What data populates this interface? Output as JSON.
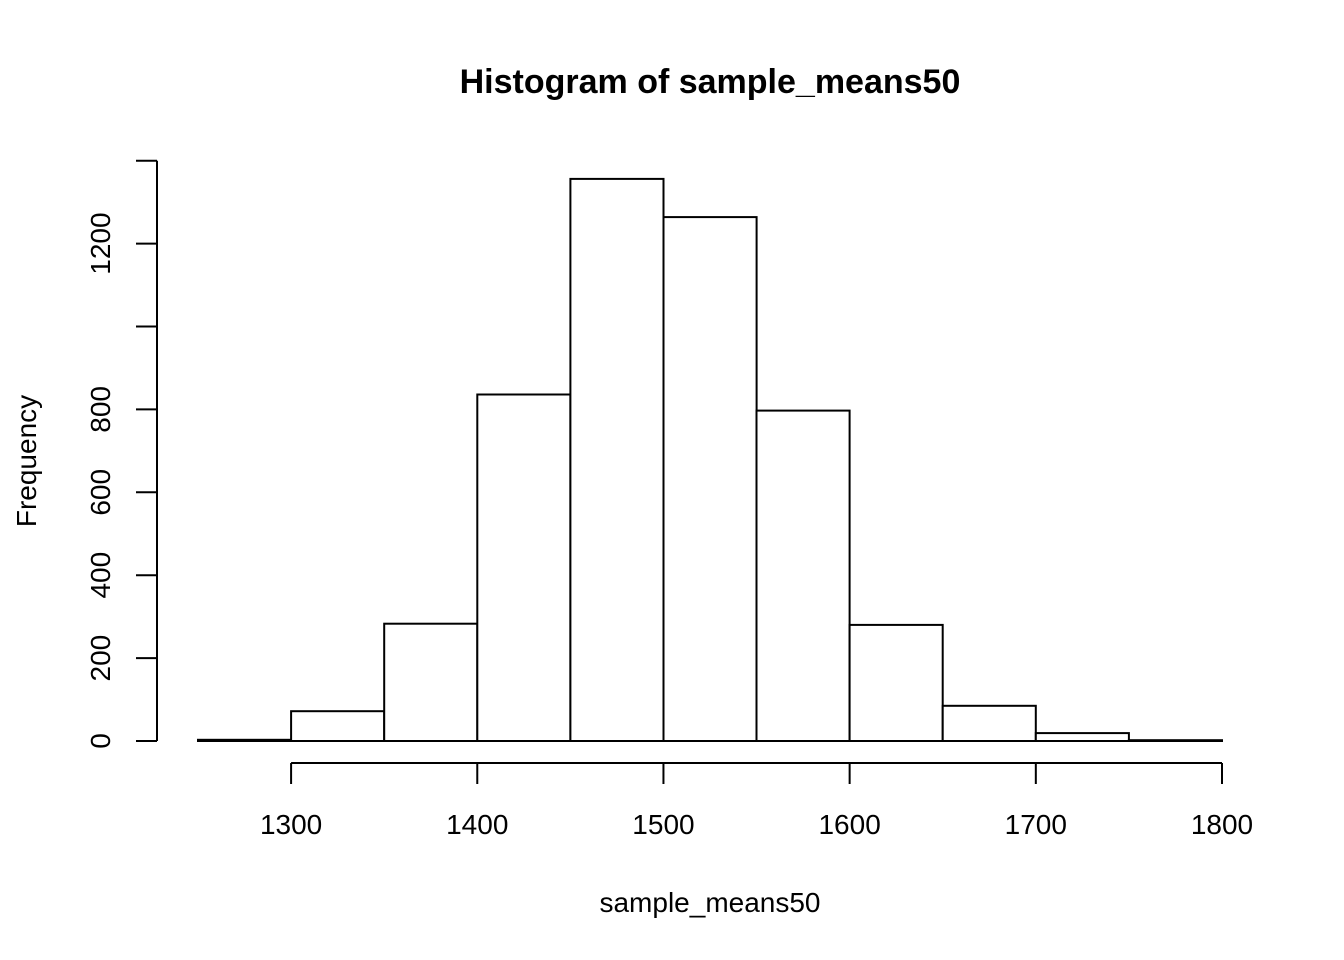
{
  "chart_data": {
    "type": "bar",
    "title": "Histogram of sample_means50",
    "xlabel": "sample_means50",
    "ylabel": "Frequency",
    "bins": [
      {
        "start": 1250,
        "end": 1300,
        "count": 3
      },
      {
        "start": 1300,
        "end": 1350,
        "count": 72
      },
      {
        "start": 1350,
        "end": 1400,
        "count": 283
      },
      {
        "start": 1400,
        "end": 1450,
        "count": 836
      },
      {
        "start": 1450,
        "end": 1500,
        "count": 1356
      },
      {
        "start": 1500,
        "end": 1550,
        "count": 1264
      },
      {
        "start": 1550,
        "end": 1600,
        "count": 797
      },
      {
        "start": 1600,
        "end": 1650,
        "count": 280
      },
      {
        "start": 1650,
        "end": 1700,
        "count": 85
      },
      {
        "start": 1700,
        "end": 1750,
        "count": 19
      },
      {
        "start": 1750,
        "end": 1800,
        "count": 2
      }
    ],
    "xlim": [
      1250,
      1800
    ],
    "ylim": [
      0,
      1400
    ],
    "x_ticks": [
      1300,
      1400,
      1500,
      1600,
      1700,
      1800
    ],
    "x_tick_labels": [
      "1300",
      "1400",
      "1500",
      "1600",
      "1700",
      "1800"
    ],
    "y_ticks": [
      0,
      200,
      400,
      600,
      800,
      1000,
      1200,
      1400
    ],
    "y_tick_labels": [
      "0",
      "200",
      "400",
      "600",
      "800",
      "",
      "1200",
      ""
    ],
    "grid": false,
    "legend": "none"
  }
}
